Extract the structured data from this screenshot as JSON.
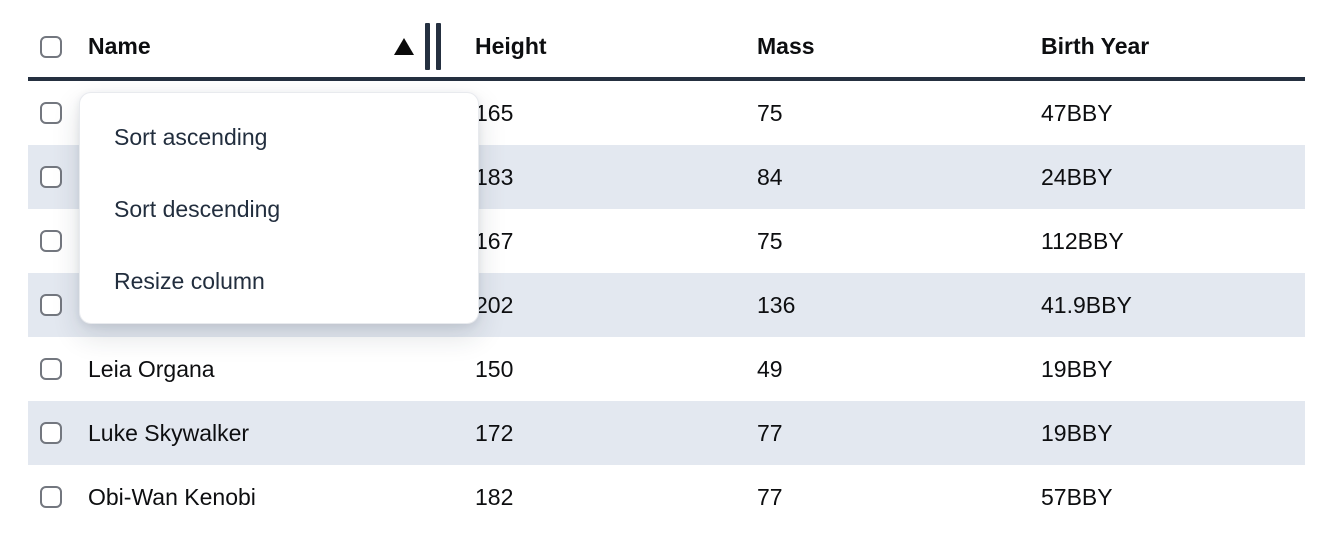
{
  "colors": {
    "header_border": "#253040",
    "striped_row": "#e3e8f0",
    "menu_text": "#222e3e",
    "body_text": "#0d0e10"
  },
  "table": {
    "columns": {
      "name": {
        "label": "Name",
        "sort_direction": "ascending"
      },
      "height": {
        "label": "Height"
      },
      "mass": {
        "label": "Mass"
      },
      "birth_year": {
        "label": "Birth Year"
      }
    },
    "select_all_checked": false,
    "rows": [
      {
        "name": "",
        "height": "165",
        "mass": "75",
        "birth_year": "47BBY",
        "checked": false,
        "note": "name cell hidden behind context menu"
      },
      {
        "name": "",
        "height": "183",
        "mass": "84",
        "birth_year": "24BBY",
        "checked": false,
        "note": "name cell hidden behind context menu"
      },
      {
        "name": "",
        "height": "167",
        "mass": "75",
        "birth_year": "112BBY",
        "checked": false,
        "note": "name cell hidden behind context menu"
      },
      {
        "name": "",
        "height": "202",
        "mass": "136",
        "birth_year": "41.9BBY",
        "checked": false,
        "note": "name cell hidden behind context menu"
      },
      {
        "name": "Leia Organa",
        "height": "150",
        "mass": "49",
        "birth_year": "19BBY",
        "checked": false
      },
      {
        "name": "Luke Skywalker",
        "height": "172",
        "mass": "77",
        "birth_year": "19BBY",
        "checked": false
      },
      {
        "name": "Obi-Wan Kenobi",
        "height": "182",
        "mass": "77",
        "birth_year": "57BBY",
        "checked": false,
        "note": "row clipped at bottom of viewport"
      }
    ]
  },
  "context_menu": {
    "items": [
      {
        "label": "Sort ascending"
      },
      {
        "label": "Sort descending"
      },
      {
        "label": "Resize column"
      }
    ]
  }
}
